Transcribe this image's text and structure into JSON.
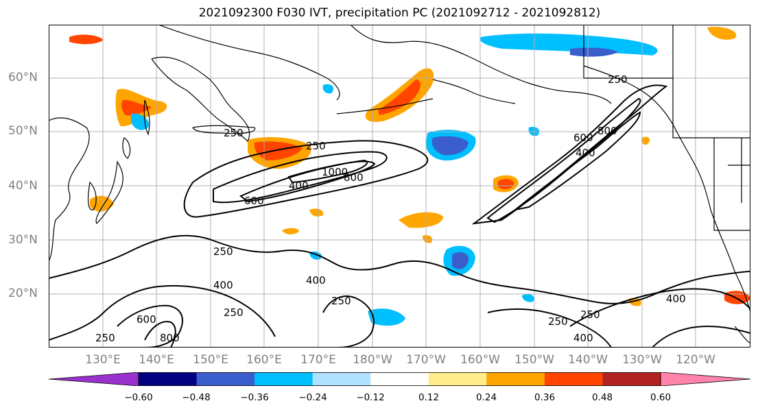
{
  "title": "2021092300 F030 IVT, precipitation PC (2021092712 - 2021092812)",
  "latitude_labels": [
    "60°N",
    "50°N",
    "40°N",
    "30°N",
    "20°N"
  ],
  "longitude_labels": [
    "130°E",
    "140°E",
    "150°E",
    "160°E",
    "170°E",
    "180°W",
    "170°W",
    "160°W",
    "150°W",
    "140°W",
    "130°W",
    "120°W"
  ],
  "contour_labels": [
    "250",
    "250",
    "250",
    "250",
    "250",
    "250",
    "250",
    "250",
    "250",
    "400",
    "400",
    "400",
    "400",
    "400",
    "400",
    "600",
    "600",
    "600",
    "800",
    "800",
    "800",
    "1000"
  ],
  "colorbar": {
    "ticks": [
      "−0.60",
      "−0.48",
      "−0.36",
      "−0.24",
      "−0.12",
      "0.12",
      "0.24",
      "0.36",
      "0.48",
      "0.60"
    ],
    "colors": [
      "#9932CC",
      "#000080",
      "#3A5FCD",
      "#00BFFF",
      "#B0E2FF",
      "#FFFFFF",
      "#FFEC8B",
      "#FFA500",
      "#FF4500",
      "#B22222",
      "#FF83AA"
    ]
  },
  "colors": {
    "land_outline": "#000000",
    "grid": "#b0b0b0",
    "axis_label": "#7f7f7f"
  }
}
